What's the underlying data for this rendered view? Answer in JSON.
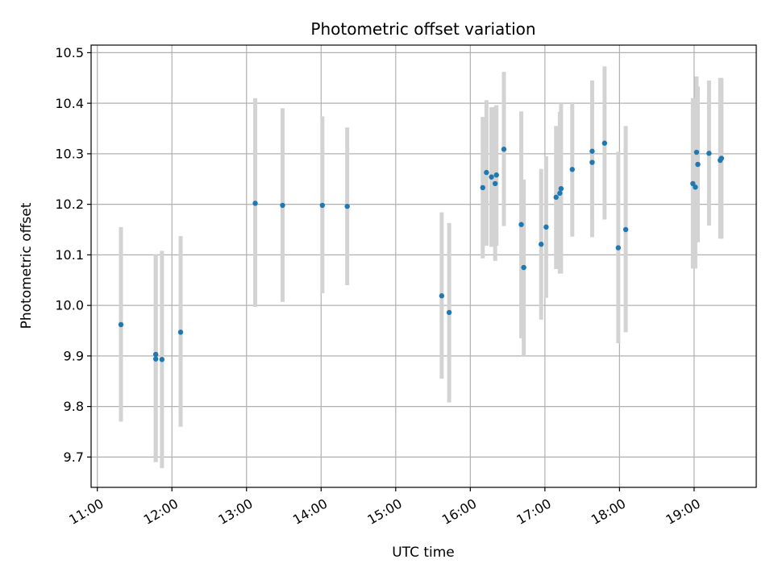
{
  "chart_data": {
    "type": "scatter",
    "title": "Photometric offset variation",
    "xlabel": "UTC time",
    "ylabel": "Photometric offset",
    "xlim": [
      "10:55",
      "19:50"
    ],
    "ylim": [
      9.64,
      10.515
    ],
    "grid": true,
    "x_ticks": [
      "11:00",
      "12:00",
      "13:00",
      "14:00",
      "15:00",
      "16:00",
      "17:00",
      "18:00",
      "19:00"
    ],
    "y_ticks": [
      "9.7",
      "9.8",
      "9.9",
      "10.0",
      "10.1",
      "10.2",
      "10.3",
      "10.4",
      "10.5"
    ],
    "series": [
      {
        "color": "#1f77b4",
        "error_color": "#d3d3d3",
        "points": [
          {
            "time": "11:19",
            "y": 9.962,
            "lo": 9.77,
            "hi": 10.155
          },
          {
            "time": "11:47",
            "y": 9.903,
            "lo": 9.69,
            "hi": 10.1
          },
          {
            "time": "11:47",
            "y": 9.894,
            "lo": 9.69,
            "hi": 10.1
          },
          {
            "time": "11:52",
            "y": 9.893,
            "lo": 9.678,
            "hi": 10.108
          },
          {
            "time": "12:07",
            "y": 9.947,
            "lo": 9.76,
            "hi": 10.137
          },
          {
            "time": "13:07",
            "y": 10.202,
            "lo": 9.997,
            "hi": 10.41
          },
          {
            "time": "13:29",
            "y": 10.198,
            "lo": 10.007,
            "hi": 10.39
          },
          {
            "time": "14:01",
            "y": 10.198,
            "lo": 10.024,
            "hi": 10.374
          },
          {
            "time": "14:21",
            "y": 10.196,
            "lo": 10.04,
            "hi": 10.352
          },
          {
            "time": "15:37",
            "y": 10.019,
            "lo": 9.855,
            "hi": 10.184
          },
          {
            "time": "15:43",
            "y": 9.986,
            "lo": 9.808,
            "hi": 10.163
          },
          {
            "time": "16:10",
            "y": 10.233,
            "lo": 10.093,
            "hi": 10.373
          },
          {
            "time": "16:13",
            "y": 10.263,
            "lo": 10.118,
            "hi": 10.406
          },
          {
            "time": "16:17",
            "y": 10.254,
            "lo": 10.116,
            "hi": 10.392
          },
          {
            "time": "16:20",
            "y": 10.241,
            "lo": 10.088,
            "hi": 10.393
          },
          {
            "time": "16:21",
            "y": 10.258,
            "lo": 10.118,
            "hi": 10.396
          },
          {
            "time": "16:27",
            "y": 10.309,
            "lo": 10.157,
            "hi": 10.462
          },
          {
            "time": "16:41",
            "y": 10.16,
            "lo": 9.935,
            "hi": 10.384
          },
          {
            "time": "16:43",
            "y": 10.075,
            "lo": 9.9,
            "hi": 10.249
          },
          {
            "time": "16:57",
            "y": 10.121,
            "lo": 9.972,
            "hi": 10.27
          },
          {
            "time": "17:01",
            "y": 10.155,
            "lo": 10.015,
            "hi": 10.295
          },
          {
            "time": "17:09",
            "y": 10.214,
            "lo": 10.072,
            "hi": 10.355
          },
          {
            "time": "17:12",
            "y": 10.222,
            "lo": 10.063,
            "hi": 10.383
          },
          {
            "time": "17:13",
            "y": 10.231,
            "lo": 10.063,
            "hi": 10.4
          },
          {
            "time": "17:22",
            "y": 10.269,
            "lo": 10.136,
            "hi": 10.402
          },
          {
            "time": "17:38",
            "y": 10.305,
            "lo": 10.165,
            "hi": 10.445
          },
          {
            "time": "17:38",
            "y": 10.283,
            "lo": 10.135,
            "hi": 10.43
          },
          {
            "time": "17:48",
            "y": 10.321,
            "lo": 10.17,
            "hi": 10.473
          },
          {
            "time": "17:59",
            "y": 10.114,
            "lo": 9.925,
            "hi": 10.304
          },
          {
            "time": "18:05",
            "y": 10.15,
            "lo": 9.947,
            "hi": 10.355
          },
          {
            "time": "18:59",
            "y": 10.241,
            "lo": 10.073,
            "hi": 10.41
          },
          {
            "time": "19:01",
            "y": 10.234,
            "lo": 10.073,
            "hi": 10.41
          },
          {
            "time": "19:02",
            "y": 10.303,
            "lo": 10.153,
            "hi": 10.453
          },
          {
            "time": "19:03",
            "y": 10.279,
            "lo": 10.125,
            "hi": 10.433
          },
          {
            "time": "19:12",
            "y": 10.301,
            "lo": 10.158,
            "hi": 10.445
          },
          {
            "time": "19:21",
            "y": 10.287,
            "lo": 10.132,
            "hi": 10.45
          },
          {
            "time": "19:22",
            "y": 10.291,
            "lo": 10.132,
            "hi": 10.45
          }
        ]
      }
    ]
  }
}
